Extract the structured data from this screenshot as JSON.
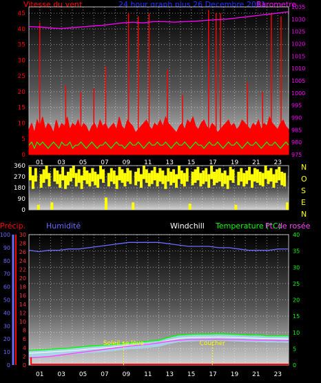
{
  "colors": {
    "wind": "#ff0000",
    "gust_fill": "#ff0000",
    "wind_min": "#00ff00",
    "barometer": "#ff00ff",
    "header_center": "#2233ff",
    "direction": "#ffff00",
    "humidity": "#6a6aff",
    "windchill": "#ffffff",
    "temperature": "#00ff00",
    "dewpoint": "#ff44ff",
    "precip": "#ff0000",
    "sunrise": "#ffff00",
    "sunset": "#ffff00",
    "pluviometry_bar": "#ff0000"
  },
  "labels": {
    "wind_title": "Vitesse du vent",
    "center_title": "24 hour graph plus 26 Decembre 2011",
    "baro_title": "Barometre",
    "precip_title": "Précip.",
    "humidity_title": "Humidité",
    "windchill_title": "Windchill",
    "temperature_title": "Temperature (°C)",
    "dewpoint_title": "Pt. de rosée",
    "sunrise": "Soleil se lève",
    "sunset": "Coucher"
  },
  "chart_data": [
    {
      "type": "area",
      "title": "",
      "x_ticks": [
        "01",
        "03",
        "05",
        "07",
        "09",
        "11",
        "13",
        "15",
        "17",
        "19",
        "21",
        "23"
      ],
      "y_left_ticks": [
        0,
        5,
        10,
        15,
        20,
        25,
        30,
        35,
        40,
        45
      ],
      "ylim_left": [
        0,
        47
      ],
      "y_right_ticks": [
        975,
        980,
        985,
        990,
        995,
        1000,
        1005,
        1010,
        1015,
        1020,
        1025,
        1030,
        1035
      ],
      "ylim_right": [
        975,
        1035
      ],
      "series": [
        {
          "name": "Vitesse du vent",
          "axis": "left",
          "style": "filled",
          "values": [
            8,
            10,
            7,
            11,
            9,
            12,
            8,
            10,
            9,
            7,
            11,
            8,
            10,
            9,
            12,
            8,
            10,
            9,
            11,
            8,
            10,
            9,
            7,
            9,
            10,
            8,
            11,
            9,
            10,
            8,
            9,
            10,
            8,
            12,
            9,
            8,
            11,
            10,
            9,
            7,
            8,
            9,
            10,
            11,
            9,
            8,
            10,
            9,
            11,
            9,
            12,
            10,
            9,
            8,
            7,
            9,
            10,
            8,
            11,
            10,
            12,
            9,
            8,
            10,
            11,
            9,
            8,
            10,
            9,
            7,
            8,
            9,
            10,
            11,
            9,
            10,
            8,
            9,
            11,
            10,
            9,
            8,
            10,
            9,
            11,
            8,
            10,
            9,
            12,
            10,
            9,
            8,
            10,
            11,
            9,
            8
          ]
        },
        {
          "name": "Vitesse du vent (min)",
          "axis": "left",
          "style": "line",
          "values": [
            3,
            4,
            2,
            4,
            3,
            4,
            3,
            2,
            3,
            4,
            3,
            2,
            4,
            3,
            3,
            4,
            2,
            3,
            3,
            4,
            3,
            2,
            3,
            4,
            3,
            2,
            3,
            3,
            4,
            3,
            2,
            3,
            4,
            3,
            3,
            2,
            3,
            4,
            3,
            3,
            4,
            3,
            2,
            3,
            4,
            3,
            3,
            4,
            3,
            3,
            4,
            3,
            2,
            3,
            4,
            3,
            3,
            4,
            3,
            2,
            3,
            4,
            3,
            3,
            2,
            3,
            4,
            3,
            3,
            4,
            3,
            2,
            3,
            4,
            3,
            3,
            4,
            3,
            2,
            3,
            4,
            3,
            3,
            4,
            3,
            2,
            3,
            4,
            3,
            3,
            4,
            3,
            2,
            3,
            4,
            3
          ]
        },
        {
          "name": "Barometre",
          "axis": "right",
          "style": "line",
          "values": [
            1027,
            1026.8,
            1026.5,
            1026.2,
            1026.5,
            1026.8,
            1027.2,
            1027.5,
            1028,
            1028.5,
            1028.8,
            1028.5,
            1029,
            1029,
            1028.8,
            1029,
            1029.2,
            1029.5,
            1029.8,
            1030,
            1030.5,
            1031,
            1031.5,
            1032,
            1032.5,
            1033
          ]
        }
      ],
      "gust_spikes": [
        {
          "x": 1.0,
          "y": 42
        },
        {
          "x": 7.1,
          "y": 28
        },
        {
          "x": 9.2,
          "y": 45
        },
        {
          "x": 10.1,
          "y": 44
        },
        {
          "x": 11.1,
          "y": 45
        },
        {
          "x": 12.8,
          "y": 27
        },
        {
          "x": 16.6,
          "y": 46
        },
        {
          "x": 17.3,
          "y": 45
        },
        {
          "x": 17.7,
          "y": 45
        },
        {
          "x": 22.4,
          "y": 45
        },
        {
          "x": 23.3,
          "y": 44
        },
        {
          "x": 3.4,
          "y": 22
        },
        {
          "x": 6.0,
          "y": 21
        },
        {
          "x": 20.2,
          "y": 23
        },
        {
          "x": 4.8,
          "y": 20
        },
        {
          "x": 14.2,
          "y": 19
        },
        {
          "x": 21.6,
          "y": 20
        }
      ]
    },
    {
      "type": "bar",
      "title": "",
      "x_ticks": [],
      "y_ticks": [
        0,
        90,
        180,
        270,
        360
      ],
      "ylim": [
        0,
        360
      ],
      "right_labels": [
        "N",
        "O",
        "S",
        "E",
        "N"
      ],
      "series": [
        {
          "name": "Direction",
          "values": [
            310,
            240,
            300,
            0,
            250,
            290,
            320,
            260,
            20,
            300,
            280,
            250,
            310,
            240,
            270,
            300,
            330,
            260,
            290,
            240,
            310,
            280,
            260,
            300,
            270,
            250,
            320,
            290,
            60,
            260,
            300,
            280,
            240,
            310,
            290,
            260,
            300,
            280,
            20,
            270,
            300,
            250,
            320,
            290,
            260,
            280,
            310,
            260,
            300,
            280,
            240,
            300,
            270,
            290,
            250,
            320,
            280,
            260,
            300,
            10,
            270,
            290,
            310,
            260,
            280,
            300,
            250,
            320,
            270,
            290,
            300,
            260,
            280,
            240,
            310,
            290,
            0,
            270,
            300,
            260,
            280,
            310,
            250,
            300,
            290,
            270,
            260,
            320,
            280,
            300,
            250,
            290,
            310,
            270,
            260,
            20
          ]
        }
      ]
    },
    {
      "type": "line",
      "title": "",
      "x_ticks": [
        "01",
        "03",
        "05",
        "07",
        "09",
        "11",
        "13",
        "15",
        "17",
        "19",
        "21",
        "23"
      ],
      "y_precip_ticks": [
        0,
        2,
        4,
        6,
        8,
        10,
        12,
        14,
        16,
        18,
        20,
        22,
        24,
        26,
        28,
        30
      ],
      "y_left_ticks": [
        0,
        10,
        20,
        30,
        40,
        50,
        60,
        70,
        80,
        90,
        100
      ],
      "ylim_left": [
        0,
        100
      ],
      "y_right_ticks": [
        0,
        5,
        10,
        15,
        20,
        25,
        30,
        35,
        40
      ],
      "ylim_right": [
        0,
        40
      ],
      "series": [
        {
          "name": "Humidité",
          "axis": "left",
          "values": [
            88,
            87,
            88,
            88,
            89,
            89,
            90,
            91,
            92,
            93,
            94,
            94,
            94,
            94,
            93,
            92,
            91,
            91,
            91,
            90,
            90,
            89,
            88,
            88,
            88,
            89,
            89
          ]
        },
        {
          "name": "Temperature (°C)",
          "axis": "right",
          "values": [
            4.5,
            4.6,
            4.8,
            5,
            5.2,
            5.5,
            5.8,
            6,
            6.2,
            6.5,
            6.8,
            7,
            7.3,
            7.6,
            8.5,
            9.2,
            9.4,
            9.5,
            9.5,
            9.6,
            9.5,
            9.4,
            9.2,
            9.2,
            9.0,
            9.0,
            9.0
          ]
        },
        {
          "name": "Windchill",
          "axis": "right",
          "values": [
            3.6,
            3.8,
            4,
            4.2,
            4.4,
            4.6,
            4.9,
            5.1,
            5.4,
            5.7,
            6,
            6.2,
            6.5,
            6.8,
            7.6,
            8.2,
            8.4,
            8.5,
            8.5,
            8.6,
            8.5,
            8.4,
            8.3,
            8.2,
            8.1,
            8.1,
            8.0
          ]
        },
        {
          "name": "Pt. de rosée",
          "axis": "right",
          "values": [
            2.2,
            2.4,
            2.6,
            3,
            3.4,
            3.8,
            4.2,
            4.6,
            5,
            5.4,
            5.8,
            6.1,
            6.4,
            6.8,
            7.3,
            7.6,
            7.8,
            7.8,
            7.9,
            7.9,
            7.8,
            7.8,
            7.7,
            7.6,
            7.6,
            7.5,
            7.5
          ]
        },
        {
          "name": "Précip.",
          "axis": "precip",
          "values": [
            1.2,
            0.2,
            0,
            0,
            0,
            0,
            0,
            0,
            0,
            0,
            0,
            0,
            0,
            0,
            0,
            0,
            0,
            0,
            0,
            0,
            0,
            0,
            0,
            0,
            0,
            0,
            0
          ]
        }
      ],
      "markers": [
        {
          "label": "Soleil se lève",
          "hour": 8.75
        },
        {
          "label": "Coucher",
          "hour": 16.95
        }
      ]
    }
  ]
}
